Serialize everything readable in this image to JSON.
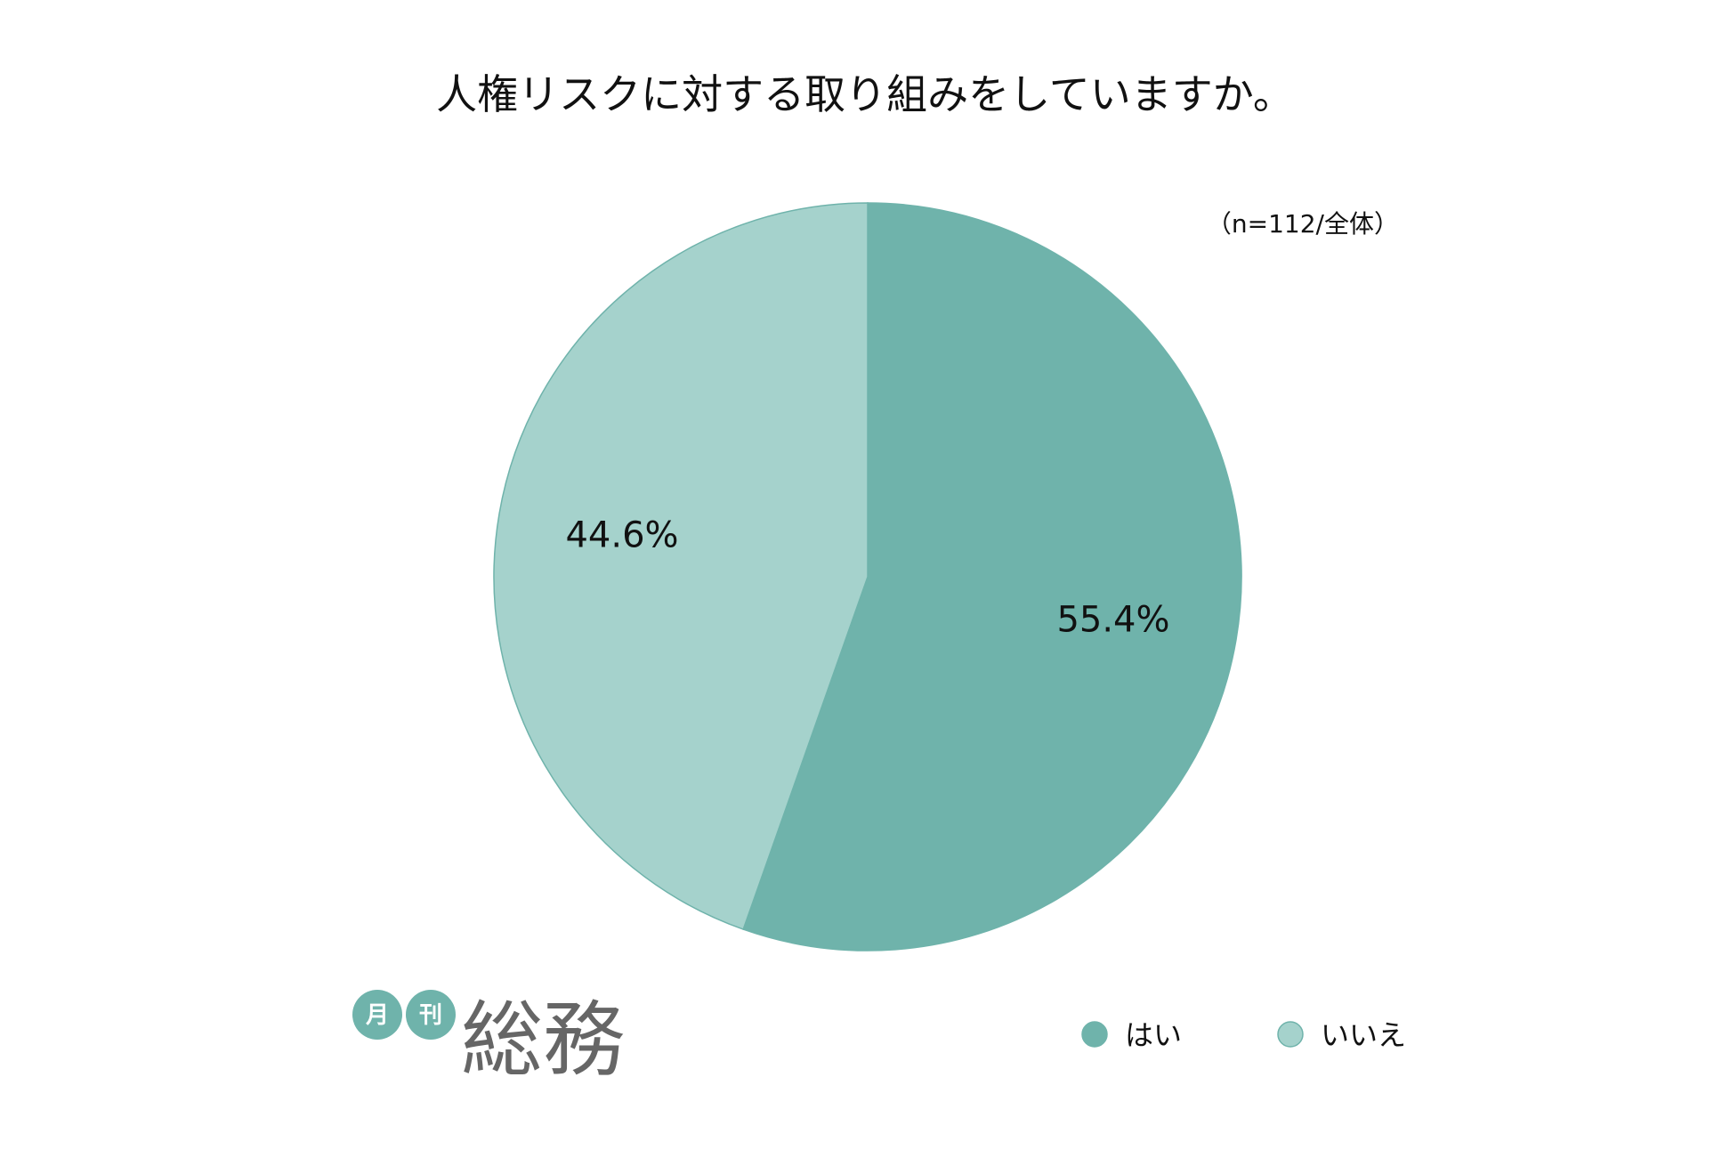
{
  "chart_data": {
    "type": "pie",
    "title": "人権リスクに対する取り組みをしていますか。",
    "note": "（n=112/全体）",
    "slices": [
      {
        "label": "はい",
        "value": 55.4,
        "value_label": "55.4%",
        "color": "#6fb3ab"
      },
      {
        "label": "いいえ",
        "value": 44.6,
        "value_label": "44.6%",
        "color": "#a5d2cc"
      }
    ],
    "legend_position": "bottom-right",
    "start": "top",
    "direction": "clockwise"
  },
  "logo": {
    "badge_1": "月",
    "badge_2": "刊",
    "name": "総務",
    "badge_color": "#6fb3ab"
  }
}
